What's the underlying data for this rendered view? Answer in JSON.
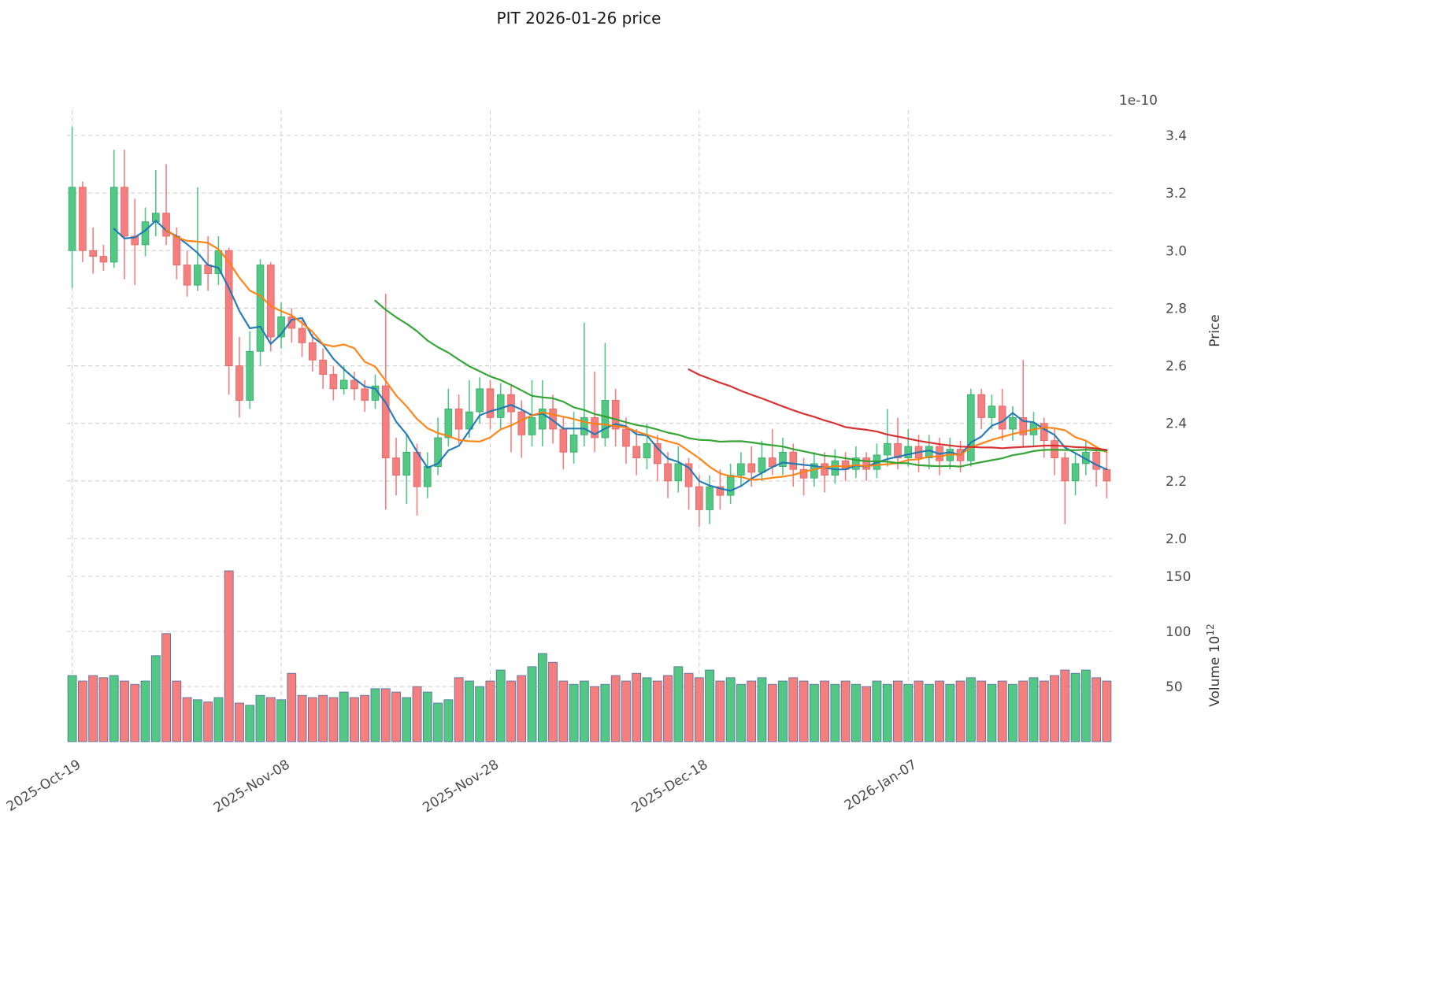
{
  "title": "PIT  2026-01-26  price",
  "axes": {
    "price_label": "Price",
    "price_offset": "1e-10",
    "volume_label_prefix": "Volume  10",
    "volume_label_exp": "12",
    "price_ticks": [
      2.0,
      2.2,
      2.4,
      2.6,
      2.8,
      3.0,
      3.2,
      3.4
    ],
    "volume_ticks": [
      50,
      100,
      150
    ],
    "x_ticks": [
      {
        "i": 0,
        "label": "2025-Oct-19"
      },
      {
        "i": 20,
        "label": "2025-Nov-08"
      },
      {
        "i": 40,
        "label": "2025-Nov-28"
      },
      {
        "i": 60,
        "label": "2025-Dec-18"
      },
      {
        "i": 80,
        "label": "2026-Jan-07"
      }
    ]
  },
  "style": {
    "up_color": "#53c784",
    "down_color": "#f57f7f",
    "up_edge": "#36a96a",
    "down_edge": "#e46262",
    "volume_bar_edge": "#4f6d9e",
    "ma_colors": [
      "#1f77b4",
      "#ff7f0e",
      "#2ca02c",
      "#d62728"
    ],
    "grid_color": "#cccccc",
    "text_color": "#4d4d4d"
  },
  "chart_data": {
    "type": "candlestick+volume",
    "ticker": "PIT",
    "as_of_date": "2026-01-26",
    "points": 100,
    "dates_start": "2025-10-19",
    "dates_end": "2026-01-26",
    "price_unit_multiplier": "1e-10",
    "volume_unit_multiplier": "1e12",
    "ylim_price": [
      1.95,
      3.48
    ],
    "ylim_volume": [
      0,
      165
    ],
    "ma_windows": [
      5,
      10,
      30,
      60
    ],
    "open": [
      3.0,
      3.22,
      3.0,
      2.98,
      2.96,
      3.22,
      3.05,
      3.02,
      3.1,
      3.13,
      3.05,
      2.95,
      2.88,
      2.95,
      2.92,
      3.0,
      2.6,
      2.48,
      2.65,
      2.95,
      2.7,
      2.77,
      2.73,
      2.68,
      2.62,
      2.57,
      2.52,
      2.55,
      2.52,
      2.48,
      2.53,
      2.28,
      2.22,
      2.3,
      2.18,
      2.25,
      2.35,
      2.45,
      2.38,
      2.44,
      2.52,
      2.42,
      2.5,
      2.44,
      2.36,
      2.38,
      2.45,
      2.38,
      2.3,
      2.36,
      2.42,
      2.35,
      2.48,
      2.38,
      2.32,
      2.28,
      2.33,
      2.26,
      2.2,
      2.26,
      2.18,
      2.1,
      2.18,
      2.15,
      2.22,
      2.26,
      2.23,
      2.28,
      2.25,
      2.3,
      2.24,
      2.21,
      2.26,
      2.22,
      2.27,
      2.24,
      2.28,
      2.24,
      2.29,
      2.33,
      2.28,
      2.32,
      2.28,
      2.32,
      2.27,
      2.31,
      2.27,
      2.5,
      2.42,
      2.46,
      2.38,
      2.42,
      2.36,
      2.4,
      2.34,
      2.28,
      2.2,
      2.26,
      2.3,
      2.24
    ],
    "high": [
      3.43,
      3.24,
      3.08,
      3.02,
      3.35,
      3.35,
      3.18,
      3.15,
      3.28,
      3.3,
      3.08,
      3.0,
      3.22,
      3.05,
      3.05,
      3.01,
      2.7,
      2.72,
      2.97,
      2.96,
      2.82,
      2.8,
      2.76,
      2.71,
      2.66,
      2.6,
      2.6,
      2.58,
      2.55,
      2.57,
      2.85,
      2.35,
      2.36,
      2.33,
      2.3,
      2.42,
      2.52,
      2.5,
      2.55,
      2.56,
      2.55,
      2.54,
      2.53,
      2.48,
      2.55,
      2.55,
      2.5,
      2.42,
      2.44,
      2.75,
      2.58,
      2.68,
      2.52,
      2.42,
      2.38,
      2.4,
      2.36,
      2.3,
      2.32,
      2.28,
      2.22,
      2.22,
      2.24,
      2.26,
      2.3,
      2.32,
      2.34,
      2.38,
      2.35,
      2.33,
      2.28,
      2.3,
      2.3,
      2.31,
      2.3,
      2.32,
      2.3,
      2.33,
      2.45,
      2.42,
      2.38,
      2.36,
      2.36,
      2.35,
      2.35,
      2.34,
      2.52,
      2.52,
      2.5,
      2.52,
      2.46,
      2.62,
      2.44,
      2.42,
      2.38,
      2.3,
      2.3,
      2.34,
      2.32,
      2.3
    ],
    "low": [
      2.87,
      2.96,
      2.92,
      2.93,
      2.94,
      2.9,
      2.88,
      2.98,
      3.05,
      3.02,
      2.9,
      2.84,
      2.86,
      2.86,
      2.88,
      2.5,
      2.42,
      2.45,
      2.6,
      2.65,
      2.66,
      2.68,
      2.63,
      2.58,
      2.52,
      2.48,
      2.5,
      2.48,
      2.44,
      2.45,
      2.1,
      2.15,
      2.12,
      2.08,
      2.14,
      2.22,
      2.32,
      2.33,
      2.35,
      2.4,
      2.38,
      2.38,
      2.3,
      2.28,
      2.32,
      2.32,
      2.33,
      2.24,
      2.26,
      2.32,
      2.3,
      2.32,
      2.32,
      2.26,
      2.22,
      2.24,
      2.2,
      2.14,
      2.16,
      2.1,
      2.04,
      2.05,
      2.1,
      2.12,
      2.18,
      2.18,
      2.2,
      2.22,
      2.22,
      2.18,
      2.15,
      2.18,
      2.16,
      2.19,
      2.2,
      2.21,
      2.2,
      2.21,
      2.25,
      2.24,
      2.25,
      2.23,
      2.24,
      2.22,
      2.24,
      2.23,
      2.25,
      2.38,
      2.38,
      2.34,
      2.34,
      2.32,
      2.32,
      2.28,
      2.22,
      2.05,
      2.15,
      2.22,
      2.18,
      2.14
    ],
    "close": [
      3.22,
      3.0,
      2.98,
      2.96,
      3.22,
      3.05,
      3.02,
      3.1,
      3.13,
      3.05,
      2.95,
      2.88,
      2.95,
      2.92,
      3.0,
      2.6,
      2.48,
      2.65,
      2.95,
      2.7,
      2.77,
      2.73,
      2.68,
      2.62,
      2.57,
      2.52,
      2.55,
      2.52,
      2.48,
      2.53,
      2.28,
      2.22,
      2.3,
      2.18,
      2.25,
      2.35,
      2.45,
      2.38,
      2.44,
      2.52,
      2.42,
      2.5,
      2.44,
      2.36,
      2.42,
      2.45,
      2.38,
      2.3,
      2.36,
      2.42,
      2.35,
      2.48,
      2.38,
      2.32,
      2.28,
      2.33,
      2.26,
      2.2,
      2.26,
      2.18,
      2.1,
      2.18,
      2.15,
      2.22,
      2.26,
      2.23,
      2.28,
      2.25,
      2.3,
      2.24,
      2.21,
      2.26,
      2.22,
      2.27,
      2.24,
      2.28,
      2.24,
      2.29,
      2.33,
      2.28,
      2.32,
      2.28,
      2.32,
      2.27,
      2.31,
      2.27,
      2.5,
      2.42,
      2.46,
      2.38,
      2.42,
      2.36,
      2.4,
      2.34,
      2.28,
      2.2,
      2.26,
      2.3,
      2.24,
      2.2
    ],
    "volume": [
      60,
      55,
      60,
      58,
      60,
      55,
      52,
      55,
      78,
      98,
      55,
      40,
      38,
      36,
      40,
      155,
      35,
      33,
      42,
      40,
      38,
      62,
      42,
      40,
      42,
      40,
      45,
      40,
      42,
      48,
      48,
      45,
      40,
      50,
      45,
      35,
      38,
      58,
      55,
      50,
      55,
      65,
      55,
      60,
      68,
      80,
      72,
      55,
      52,
      55,
      50,
      52,
      60,
      55,
      62,
      58,
      55,
      60,
      68,
      62,
      58,
      65,
      55,
      58,
      52,
      55,
      58,
      52,
      55,
      58,
      55,
      52,
      55,
      52,
      55,
      52,
      50,
      55,
      52,
      55,
      52,
      55,
      52,
      55,
      52,
      55,
      58,
      55,
      52,
      55,
      52,
      55,
      58,
      55,
      60,
      65,
      62,
      65,
      58,
      55
    ]
  }
}
